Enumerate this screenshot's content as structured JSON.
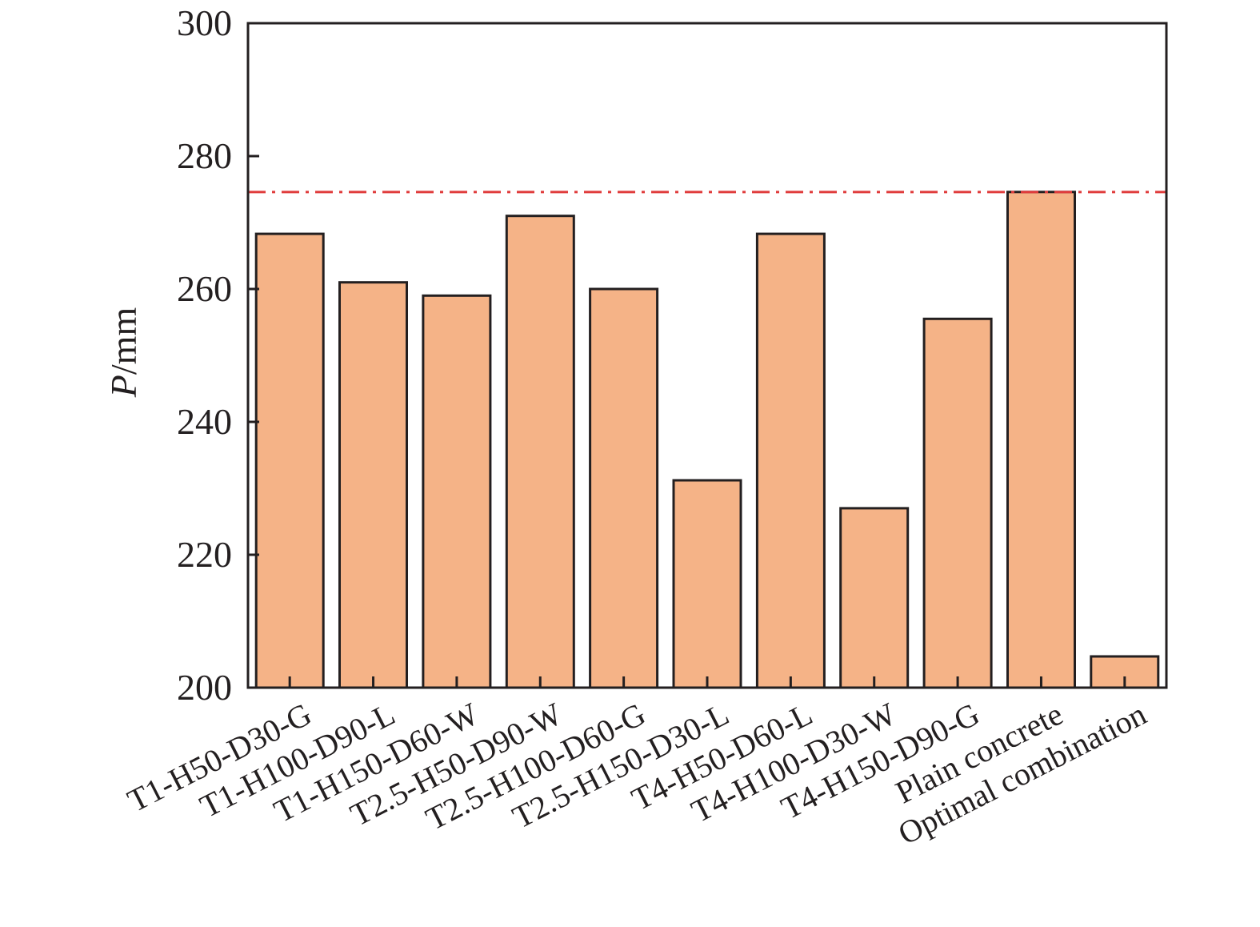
{
  "chart_data": {
    "type": "bar",
    "categories": [
      "T1-H50-D30-G",
      "T1-H100-D90-L",
      "T1-H150-D60-W",
      "T2.5-H50-D90-W",
      "T2.5-H100-D60-G",
      "T2.5-H150-D30-L",
      "T4-H50-D60-L",
      "T4-H100-D30-W",
      "T4-H150-D90-G",
      "Plain concrete",
      "Optimal combination"
    ],
    "values": [
      268.3,
      261.0,
      259.0,
      271.0,
      260.0,
      231.2,
      268.3,
      227.0,
      255.5,
      204.7,
      274.6
    ],
    "bar_order": [
      0,
      1,
      2,
      3,
      4,
      5,
      6,
      7,
      8,
      10,
      9
    ],
    "ylabel_italic": "P",
    "ylabel_rest": "/mm",
    "ylim": [
      200,
      300
    ],
    "yticks": [
      200,
      220,
      240,
      260,
      280,
      300
    ],
    "reference_line": {
      "value": 274.6,
      "style": "dash-dot"
    },
    "grid": false,
    "legend": "none",
    "colors": {
      "bar_fill": "#F5B387",
      "bar_stroke": "#231f20",
      "reference_line": "#E03C3C",
      "axis": "#231f20",
      "text": "#231f20"
    }
  }
}
